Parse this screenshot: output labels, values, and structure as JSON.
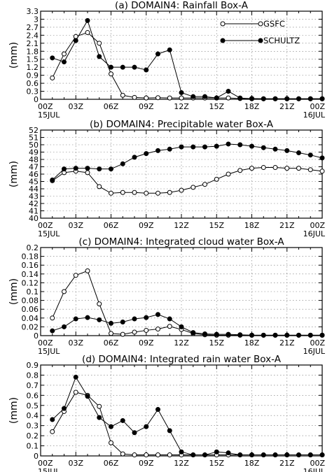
{
  "chart_data": [
    {
      "type": "line",
      "title": "(a)  DOMAIN4: Rainfall Box-A",
      "ylabel": "(mm)",
      "ylim": [
        0,
        3.3
      ],
      "yticks": [
        0,
        0.3,
        0.6,
        0.9,
        1.2,
        1.5,
        1.8,
        2.1,
        2.4,
        2.7,
        3,
        3.3
      ],
      "ytick_labels": [
        "0",
        "0.3",
        "0.6",
        "0.9",
        "1.2",
        "1.5",
        "1.8",
        "2.1",
        "2.4",
        "2.7",
        "3",
        "3.3"
      ],
      "show_legend": true,
      "series": [
        {
          "name": "GSFC",
          "marker": "open-circle",
          "x": [
            1,
            2,
            3,
            4,
            5,
            6,
            7,
            8,
            9,
            10,
            11,
            12,
            13,
            14,
            15,
            16,
            17,
            18,
            19,
            20,
            21,
            22,
            23,
            24
          ],
          "values": [
            0.8,
            1.7,
            2.35,
            2.5,
            2.1,
            0.95,
            0.15,
            0.07,
            0.05,
            0.06,
            0.05,
            0.05,
            0.05,
            0.05,
            0.05,
            0.05,
            0.03,
            0.03,
            0.02,
            0.02,
            0.02,
            0.02,
            0.02,
            0.02
          ]
        },
        {
          "name": "SCHULTZ",
          "marker": "filled-circle",
          "x": [
            1,
            2,
            3,
            4,
            5,
            6,
            7,
            8,
            9,
            10,
            11,
            12,
            13,
            14,
            15,
            16,
            17,
            18,
            19,
            20,
            21,
            22,
            23,
            24
          ],
          "values": [
            1.55,
            1.4,
            2.2,
            2.95,
            1.6,
            1.2,
            1.2,
            1.2,
            1.1,
            1.7,
            1.85,
            0.25,
            0.1,
            0.1,
            0.05,
            0.3,
            0.05,
            0.02,
            0.02,
            0.02,
            0.02,
            0.02,
            0.02,
            0.02
          ]
        }
      ]
    },
    {
      "type": "line",
      "title": "(b)  DOMAIN4: Precipitable water Box-A",
      "ylabel": "(mm)",
      "ylim": [
        40,
        52
      ],
      "yticks": [
        40,
        41,
        42,
        43,
        44,
        45,
        46,
        47,
        48,
        49,
        50,
        51,
        52
      ],
      "ytick_labels": [
        "40",
        "41",
        "42",
        "43",
        "44",
        "45",
        "46",
        "47",
        "48",
        "49",
        "50",
        "51",
        "52"
      ],
      "show_legend": false,
      "series": [
        {
          "name": "GSFC",
          "marker": "open-circle",
          "x": [
            1,
            2,
            3,
            4,
            5,
            6,
            7,
            8,
            9,
            10,
            11,
            12,
            13,
            14,
            15,
            16,
            17,
            18,
            19,
            20,
            21,
            22,
            23,
            24
          ],
          "values": [
            45.1,
            46.2,
            46.4,
            46.2,
            44.3,
            43.4,
            43.5,
            43.5,
            43.4,
            43.4,
            43.5,
            43.8,
            44.2,
            44.6,
            45.3,
            46.0,
            46.5,
            46.8,
            46.9,
            46.9,
            46.8,
            46.8,
            46.6,
            46.4
          ]
        },
        {
          "name": "SCHULTZ",
          "marker": "filled-circle",
          "x": [
            1,
            2,
            3,
            4,
            5,
            6,
            7,
            8,
            9,
            10,
            11,
            12,
            13,
            14,
            15,
            16,
            17,
            18,
            19,
            20,
            21,
            22,
            23,
            24
          ],
          "values": [
            45.2,
            46.7,
            46.8,
            46.8,
            46.7,
            46.7,
            47.4,
            48.3,
            48.8,
            49.2,
            49.4,
            49.7,
            49.7,
            49.7,
            49.8,
            50.1,
            50.0,
            49.8,
            49.6,
            49.4,
            49.2,
            48.9,
            48.6,
            48.2
          ]
        }
      ]
    },
    {
      "type": "line",
      "title": "(c)  DOMAIN4: Integrated cloud water Box-A",
      "ylabel": "(mm)",
      "ylim": [
        0,
        0.2
      ],
      "yticks": [
        0,
        0.02,
        0.04,
        0.06,
        0.08,
        0.1,
        0.12,
        0.14,
        0.16,
        0.18,
        0.2
      ],
      "ytick_labels": [
        "0",
        "0.02",
        "0.04",
        "0.06",
        "0.08",
        "0.1",
        "0.12",
        "0.14",
        "0.16",
        "0.18",
        "0.2"
      ],
      "show_legend": false,
      "series": [
        {
          "name": "GSFC",
          "marker": "open-circle",
          "x": [
            1,
            2,
            3,
            4,
            5,
            6,
            7,
            8,
            9,
            10,
            11,
            12,
            13,
            14,
            15,
            16,
            17,
            18,
            19,
            20,
            21,
            22,
            23,
            24
          ],
          "values": [
            0.04,
            0.1,
            0.137,
            0.147,
            0.072,
            0.005,
            0.003,
            0.008,
            0.012,
            0.015,
            0.021,
            0.014,
            0.005,
            0.002,
            0.001,
            0.001,
            0.001,
            0.001,
            0.001,
            0.001,
            0.001,
            0.001,
            0.001,
            0.001
          ]
        },
        {
          "name": "SCHULTZ",
          "marker": "filled-circle",
          "x": [
            1,
            2,
            3,
            4,
            5,
            6,
            7,
            8,
            9,
            10,
            11,
            12,
            13,
            14,
            15,
            16,
            17,
            18,
            19,
            20,
            21,
            22,
            23,
            24
          ],
          "values": [
            0.011,
            0.02,
            0.038,
            0.041,
            0.036,
            0.028,
            0.031,
            0.038,
            0.041,
            0.048,
            0.038,
            0.02,
            0.007,
            0.004,
            0.003,
            0.003,
            0.002,
            0.001,
            0.001,
            0.001,
            0.001,
            0.001,
            0.001,
            0.001
          ]
        }
      ]
    },
    {
      "type": "line",
      "title": "(d)  DOMAIN4: Integrated rain water Box-A",
      "ylabel": "(mm)",
      "ylim": [
        0,
        0.9
      ],
      "yticks": [
        0,
        0.1,
        0.2,
        0.3,
        0.4,
        0.5,
        0.6,
        0.7,
        0.8,
        0.9
      ],
      "ytick_labels": [
        "0",
        "0.1",
        "0.2",
        "0.3",
        "0.4",
        "0.5",
        "0.6",
        "0.7",
        "0.8",
        "0.9"
      ],
      "show_legend": false,
      "series": [
        {
          "name": "GSFC",
          "marker": "open-circle",
          "x": [
            1,
            2,
            3,
            4,
            5,
            6,
            7,
            8,
            9,
            10,
            11,
            12,
            13,
            14,
            15,
            16,
            17,
            18,
            19,
            20,
            21,
            22,
            23,
            24
          ],
          "values": [
            0.24,
            0.44,
            0.63,
            0.6,
            0.49,
            0.13,
            0.02,
            0.01,
            0.01,
            0.01,
            0.01,
            0.01,
            0.01,
            0.01,
            0.01,
            0.01,
            0.01,
            0.01,
            0.01,
            0.01,
            0.01,
            0.01,
            0.01,
            0.01
          ]
        },
        {
          "name": "SCHULTZ",
          "marker": "filled-circle",
          "x": [
            1,
            2,
            3,
            4,
            5,
            6,
            7,
            8,
            9,
            10,
            11,
            12,
            13,
            14,
            15,
            16,
            17,
            18,
            19,
            20,
            21,
            22,
            23,
            24
          ],
          "values": [
            0.36,
            0.47,
            0.78,
            0.59,
            0.38,
            0.29,
            0.35,
            0.23,
            0.29,
            0.46,
            0.25,
            0.04,
            0.01,
            0.01,
            0.04,
            0.03,
            0.01,
            0.01,
            0.01,
            0.01,
            0.01,
            0.01,
            0.01,
            0.01
          ]
        }
      ]
    }
  ],
  "x_axis": {
    "xlim": [
      0,
      24
    ],
    "ticks": [
      0,
      3,
      6,
      9,
      12,
      15,
      18,
      21,
      24
    ],
    "tick_labels": [
      "00Z",
      "03Z",
      "06Z",
      "09Z",
      "12Z",
      "15Z",
      "18Z",
      "21Z",
      "00Z"
    ],
    "date_labels": [
      {
        "at": 0,
        "label": "15JUL"
      },
      {
        "at": 24,
        "label": "16JUL"
      }
    ]
  },
  "legend": {
    "items": [
      {
        "label": "GSFC",
        "marker": "open-circle"
      },
      {
        "label": "SCHULTZ",
        "marker": "filled-circle"
      }
    ]
  },
  "style": {
    "line_color": "#000000",
    "grid_color": "#777777",
    "open_marker_fill": "#ffffff",
    "filled_marker_fill": "#000000"
  }
}
